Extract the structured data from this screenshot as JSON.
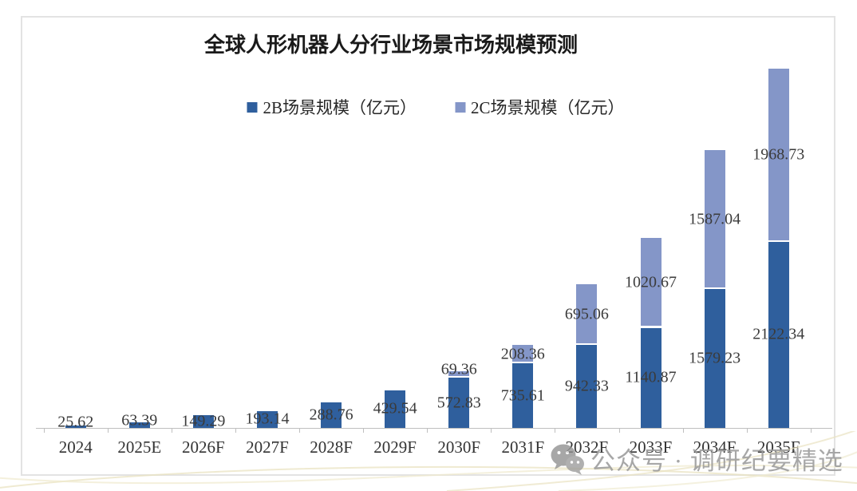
{
  "watermark": {
    "text": "公众号 · 调研纪要精选"
  },
  "chart_data": {
    "type": "bar",
    "stacked": true,
    "title": "全球人形机器人分行业场景市场规模预测",
    "unit": "亿元",
    "categories": [
      "2024",
      "2025E",
      "2026F",
      "2027F",
      "2028F",
      "2029F",
      "2030F",
      "2031F",
      "2032F",
      "2033F",
      "2034F",
      "2035F"
    ],
    "series": [
      {
        "name": "2B场景规模（亿元）",
        "color": "#2F5F9D",
        "values": [
          25.62,
          63.39,
          149.29,
          193.14,
          288.76,
          429.54,
          572.83,
          735.61,
          942.33,
          1140.87,
          1579.23,
          2122.34
        ]
      },
      {
        "name": "2C场景规模（亿元）",
        "color": "#8496C8",
        "values": [
          0,
          0,
          0,
          0,
          0,
          0,
          69.36,
          208.36,
          695.06,
          1020.67,
          1587.04,
          1968.73
        ]
      }
    ],
    "ylim": [
      0,
      4200
    ],
    "xlabel": "",
    "ylabel": "",
    "gridlines": false,
    "legend_position": "top-center",
    "value_label_format": "two decimals, inside segment center",
    "accent_colors": {
      "bar_2b": "#2F5F9D",
      "bar_2c": "#8496C8",
      "axis": "#bfbfbf",
      "watermark_gray": "#9b9b9b",
      "decor_gold": "#e9e3c2"
    }
  }
}
